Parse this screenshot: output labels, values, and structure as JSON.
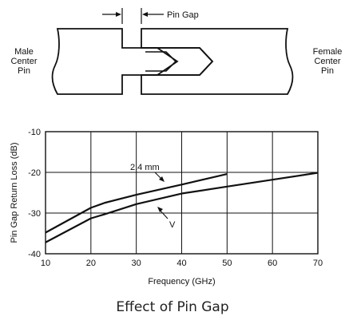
{
  "diagram": {
    "left_label": [
      "Male",
      "Center",
      "Pin"
    ],
    "right_label": [
      "Female",
      "Center",
      "Pin"
    ],
    "gap_label": "Pin Gap"
  },
  "caption": "Effect of Pin Gap",
  "chart_data": {
    "type": "line",
    "xlabel": "Frequency (GHz)",
    "ylabel": "Pin Gap Return Loss (dB)",
    "xlim": [
      10,
      70
    ],
    "ylim": [
      -40,
      -10
    ],
    "xticks": [
      "10",
      "20",
      "30",
      "40",
      "50",
      "60",
      "70"
    ],
    "yticks": [
      "-10",
      "-20",
      "-30",
      "-40"
    ],
    "grid": true,
    "series": [
      {
        "name": "2.4 mm",
        "x": [
          10,
          20,
          23,
          30,
          40,
          50
        ],
        "y": [
          -34.8,
          -28.7,
          -27.5,
          -25.5,
          -23.0,
          -20.4
        ]
      },
      {
        "name": "V",
        "x": [
          10,
          20,
          23,
          30,
          40,
          50,
          60,
          70
        ],
        "y": [
          -37.2,
          -31.3,
          -30.3,
          -27.8,
          -25.2,
          -23.5,
          -21.8,
          -20.1
        ]
      }
    ]
  }
}
